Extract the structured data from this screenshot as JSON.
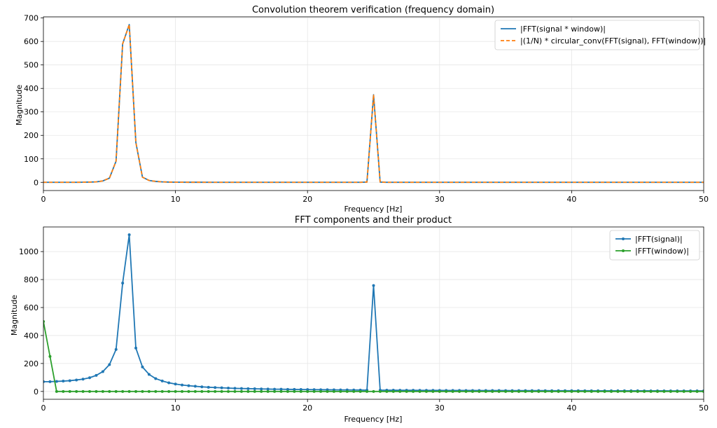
{
  "chart_data": [
    {
      "type": "line",
      "title": "Convolution theorem verification (frequency domain)",
      "xlabel": "Frequency [Hz]",
      "ylabel": "Magnitude",
      "xlim": [
        0,
        50
      ],
      "ylim": [
        -35,
        705
      ],
      "xticks": [
        0,
        10,
        20,
        30,
        40,
        50
      ],
      "yticks": [
        0,
        100,
        200,
        300,
        400,
        500,
        600,
        700
      ],
      "grid": true,
      "legend": "top-right",
      "series": [
        {
          "name": "|FFT(signal * window)|",
          "color": "#1f77b4",
          "style": "solid",
          "x": [
            0,
            0.5,
            1,
            1.5,
            2,
            2.5,
            3,
            3.5,
            4,
            4.5,
            5,
            5.5,
            6,
            6.5,
            7,
            7.5,
            8,
            8.5,
            9,
            9.5,
            10,
            11,
            12,
            13,
            14,
            15,
            16,
            17,
            18,
            19,
            20,
            21,
            22,
            23,
            24,
            24.5,
            25,
            25.5,
            26,
            27,
            28,
            29,
            30,
            32,
            34,
            36,
            38,
            40,
            42,
            44,
            46,
            48,
            50
          ],
          "y": [
            0,
            0,
            0,
            0,
            0,
            0,
            0.5,
            1,
            2,
            6,
            18,
            90,
            590,
            672,
            170,
            22,
            8,
            4,
            2,
            1,
            0.5,
            0.3,
            0.2,
            0.1,
            0,
            0,
            0,
            0,
            0,
            0,
            0,
            0,
            0,
            0,
            0,
            1,
            373,
            1,
            0,
            0,
            0,
            0,
            0,
            0,
            0,
            0,
            0,
            0,
            0,
            0,
            0,
            0,
            0
          ]
        },
        {
          "name": "|(1/N) * circular_conv(FFT(signal), FFT(window))|",
          "color": "#ff7f0e",
          "style": "dashed",
          "x": [
            0,
            0.5,
            1,
            1.5,
            2,
            2.5,
            3,
            3.5,
            4,
            4.5,
            5,
            5.5,
            6,
            6.5,
            7,
            7.5,
            8,
            8.5,
            9,
            9.5,
            10,
            11,
            12,
            13,
            14,
            15,
            16,
            17,
            18,
            19,
            20,
            21,
            22,
            23,
            24,
            24.5,
            25,
            25.5,
            26,
            27,
            28,
            29,
            30,
            32,
            34,
            36,
            38,
            40,
            42,
            44,
            46,
            48,
            50
          ],
          "y": [
            0,
            0,
            0,
            0,
            0,
            0,
            0.5,
            1,
            2,
            6,
            18,
            90,
            590,
            672,
            170,
            22,
            8,
            4,
            2,
            1,
            0.5,
            0.3,
            0.2,
            0.1,
            0,
            0,
            0,
            0,
            0,
            0,
            0,
            0,
            0,
            0,
            0,
            1,
            373,
            1,
            0,
            0,
            0,
            0,
            0,
            0,
            0,
            0,
            0,
            0,
            0,
            0,
            0,
            0,
            0
          ]
        }
      ]
    },
    {
      "type": "line",
      "title": "FFT components and their product",
      "xlabel": "Frequency [Hz]",
      "ylabel": "Magnitude",
      "xlim": [
        0,
        50
      ],
      "ylim": [
        -56,
        1176
      ],
      "xticks": [
        0,
        10,
        20,
        30,
        40,
        50
      ],
      "yticks": [
        0,
        200,
        400,
        600,
        800,
        1000
      ],
      "grid": true,
      "legend": "top-right",
      "markers": true,
      "series": [
        {
          "name": "|FFT(signal)|",
          "color": "#1f77b4",
          "x": [
            0,
            0.5,
            1,
            1.5,
            2,
            2.5,
            3,
            3.5,
            4,
            4.5,
            5,
            5.5,
            6,
            6.5,
            7,
            7.5,
            8,
            8.5,
            9,
            9.5,
            10,
            10.5,
            11,
            11.5,
            12,
            12.5,
            13,
            13.5,
            14,
            14.5,
            15,
            15.5,
            16,
            16.5,
            17,
            17.5,
            18,
            18.5,
            19,
            19.5,
            20,
            20.5,
            21,
            21.5,
            22,
            22.5,
            23,
            23.5,
            24,
            24.5,
            25,
            25.5,
            26,
            26.5,
            27,
            27.5,
            28,
            28.5,
            29,
            29.5,
            30,
            30.5,
            31,
            31.5,
            32,
            32.5,
            33,
            33.5,
            34,
            34.5,
            35,
            35.5,
            36,
            36.5,
            37,
            37.5,
            38,
            38.5,
            39,
            39.5,
            40,
            40.5,
            41,
            41.5,
            42,
            42.5,
            43,
            43.5,
            44,
            44.5,
            45,
            45.5,
            46,
            46.5,
            47,
            47.5,
            48,
            48.5,
            49,
            49.5,
            50
          ],
          "y": [
            70,
            70,
            72,
            74,
            77,
            82,
            88,
            98,
            115,
            142,
            192,
            300,
            775,
            1120,
            310,
            175,
            122,
            92,
            75,
            62,
            53,
            46,
            41,
            37,
            33,
            30,
            28,
            26,
            24,
            22,
            21,
            20,
            19,
            18,
            17,
            16,
            16,
            15,
            14.5,
            14,
            13.5,
            13,
            12.5,
            12,
            11.5,
            11,
            10.8,
            10.5,
            10,
            9,
            757,
            9,
            9,
            8.8,
            8.6,
            8.4,
            8.2,
            8,
            7.8,
            7.6,
            7.5,
            7.3,
            7.2,
            7,
            6.9,
            6.8,
            6.6,
            6.5,
            6.4,
            6.3,
            6.2,
            6.1,
            6,
            5.9,
            5.8,
            5.7,
            5.6,
            5.5,
            5.4,
            5.3,
            5.2,
            5.1,
            5,
            5,
            4.9,
            4.8,
            4.8,
            4.7,
            4.6,
            4.6,
            4.5,
            4.4,
            4.4,
            4.3,
            4.3,
            4.2,
            4.2,
            4.1,
            4.1,
            4,
            4
          ]
        },
        {
          "name": "|FFT(window)|",
          "color": "#2ca02c",
          "x": [
            0,
            0.5,
            1,
            1.5,
            2,
            2.5,
            3,
            3.5,
            4,
            4.5,
            5,
            5.5,
            6,
            6.5,
            7,
            7.5,
            8,
            8.5,
            9,
            9.5,
            10,
            10.5,
            11,
            11.5,
            12,
            12.5,
            13,
            13.5,
            14,
            14.5,
            15,
            15.5,
            16,
            16.5,
            17,
            17.5,
            18,
            18.5,
            19,
            19.5,
            20,
            20.5,
            21,
            21.5,
            22,
            22.5,
            23,
            23.5,
            24,
            24.5,
            25,
            25.5,
            26,
            26.5,
            27,
            27.5,
            28,
            28.5,
            29,
            29.5,
            30,
            30.5,
            31,
            31.5,
            32,
            32.5,
            33,
            33.5,
            34,
            34.5,
            35,
            35.5,
            36,
            36.5,
            37,
            37.5,
            38,
            38.5,
            39,
            39.5,
            40,
            40.5,
            41,
            41.5,
            42,
            42.5,
            43,
            43.5,
            44,
            44.5,
            45,
            45.5,
            46,
            46.5,
            47,
            47.5,
            48,
            48.5,
            49,
            49.5,
            50
          ],
          "y": [
            500,
            250,
            0,
            0,
            0,
            0,
            0,
            0,
            0,
            0,
            0,
            0,
            0,
            0,
            0,
            0,
            0,
            0,
            0,
            0,
            0,
            0,
            0,
            0,
            0,
            0,
            0,
            0,
            0,
            0,
            0,
            0,
            0,
            0,
            0,
            0,
            0,
            0,
            0,
            0,
            0,
            0,
            0,
            0,
            0,
            0,
            0,
            0,
            0,
            0,
            0,
            0,
            0,
            0,
            0,
            0,
            0,
            0,
            0,
            0,
            0,
            0,
            0,
            0,
            0,
            0,
            0,
            0,
            0,
            0,
            0,
            0,
            0,
            0,
            0,
            0,
            0,
            0,
            0,
            0,
            0,
            0,
            0,
            0,
            0,
            0,
            0,
            0,
            0,
            0,
            0,
            0,
            0,
            0,
            0,
            0,
            0,
            0,
            0,
            0,
            0
          ]
        }
      ]
    }
  ]
}
